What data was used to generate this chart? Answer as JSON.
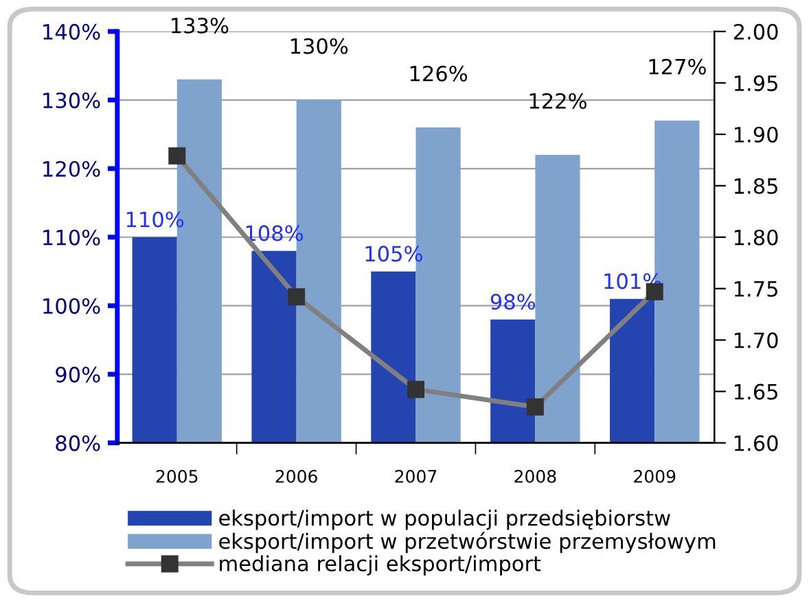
{
  "chart_data": {
    "type": "bar",
    "categories": [
      "2005",
      "2006",
      "2007",
      "2008",
      "2009"
    ],
    "series": [
      {
        "name": "eksport/import w populacji przedsiębiorstw",
        "color": "#2444b0",
        "values": [
          110,
          108,
          105,
          98,
          101
        ],
        "value_labels": [
          "110%",
          "108%",
          "105%",
          "98%",
          "101%"
        ]
      },
      {
        "name": "eksport/import w przetwórstwie przemysłowym",
        "color": "#7fa3cc",
        "values": [
          133,
          130,
          126,
          122,
          127
        ],
        "value_labels": [
          "133%",
          "130%",
          "126%",
          "122%",
          "127%"
        ]
      },
      {
        "name": "mediana relacji eksport/import",
        "type": "line",
        "axis": "y2",
        "color": "#808080",
        "values": [
          1.879,
          1.742,
          1.652,
          1.635,
          1.747
        ]
      }
    ],
    "ylim": [
      80,
      140
    ],
    "yticks": [
      {
        "value": 80,
        "label": "80%"
      },
      {
        "value": 90,
        "label": "90%"
      },
      {
        "value": 100,
        "label": "100%"
      },
      {
        "value": 110,
        "label": "110%"
      },
      {
        "value": 120,
        "label": "120%"
      },
      {
        "value": 130,
        "label": "130%"
      },
      {
        "value": 140,
        "label": "140%"
      }
    ],
    "y2lim": [
      1.6,
      2.0
    ],
    "y2ticks": [
      {
        "value": 1.6,
        "label": "1.60"
      },
      {
        "value": 1.65,
        "label": "1.65"
      },
      {
        "value": 1.7,
        "label": "1.70"
      },
      {
        "value": 1.75,
        "label": "1.75"
      },
      {
        "value": 1.8,
        "label": "1.80"
      },
      {
        "value": 1.85,
        "label": "1.85"
      },
      {
        "value": 1.9,
        "label": "1.90"
      },
      {
        "value": 1.95,
        "label": "1.95"
      },
      {
        "value": 2.0,
        "label": "2.00"
      }
    ],
    "grid": "y",
    "legend": "bottom",
    "marker": "square",
    "line_style": "solid"
  }
}
